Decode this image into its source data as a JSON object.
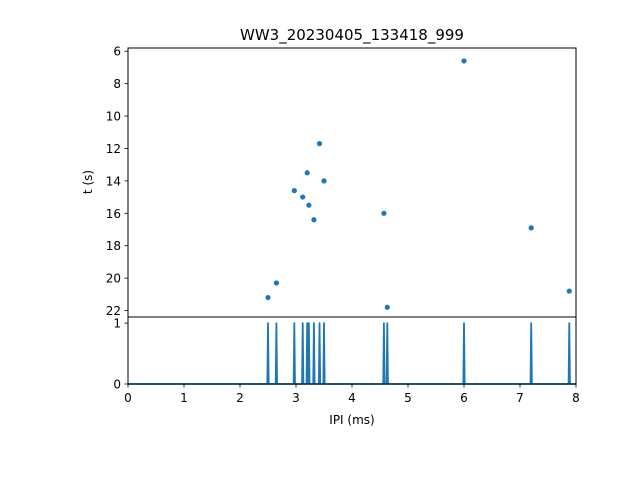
{
  "chart_data": [
    {
      "type": "scatter",
      "title": "WW3_20230405_133418_999",
      "xlabel": "",
      "ylabel": "t (s)",
      "xlim": [
        0,
        8
      ],
      "ylim": [
        22.4,
        5.8
      ],
      "y_inverted": true,
      "y_ticks": [
        6,
        8,
        10,
        12,
        14,
        16,
        18,
        20,
        22
      ],
      "color": "#1f77b4",
      "points": [
        {
          "x": 2.5,
          "y": 21.2
        },
        {
          "x": 2.65,
          "y": 20.3
        },
        {
          "x": 2.97,
          "y": 14.6
        },
        {
          "x": 3.12,
          "y": 15.0
        },
        {
          "x": 3.2,
          "y": 13.5
        },
        {
          "x": 3.23,
          "y": 15.5
        },
        {
          "x": 3.32,
          "y": 16.4
        },
        {
          "x": 3.42,
          "y": 11.7
        },
        {
          "x": 3.5,
          "y": 14.0
        },
        {
          "x": 4.57,
          "y": 16.0
        },
        {
          "x": 4.63,
          "y": 21.8
        },
        {
          "x": 6.0,
          "y": 6.6
        },
        {
          "x": 7.2,
          "y": 16.9
        },
        {
          "x": 7.88,
          "y": 20.8
        }
      ]
    },
    {
      "type": "line",
      "title": "",
      "xlabel": "IPI (ms)",
      "ylabel": "",
      "xlim": [
        0,
        8
      ],
      "ylim": [
        0,
        1.1
      ],
      "x_ticks": [
        0,
        1,
        2,
        3,
        4,
        5,
        6,
        7,
        8
      ],
      "y_ticks": [
        0,
        1
      ],
      "color": "#1f77b4",
      "spikes": [
        2.5,
        2.65,
        2.97,
        3.12,
        3.2,
        3.23,
        3.32,
        3.42,
        3.5,
        4.57,
        4.63,
        6.0,
        7.2,
        7.88
      ],
      "spike_height": 1
    }
  ]
}
